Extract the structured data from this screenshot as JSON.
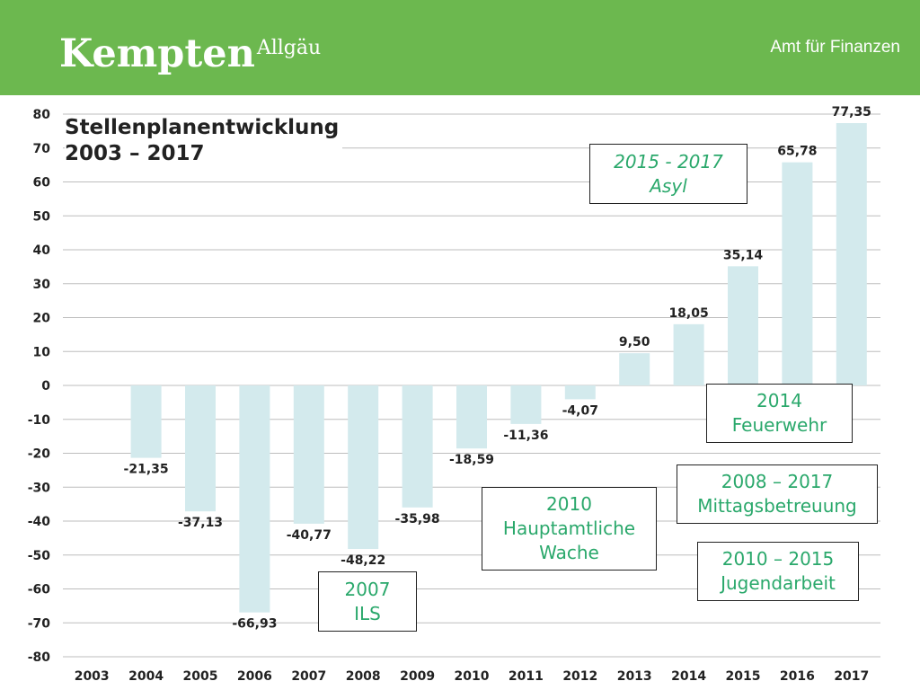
{
  "header": {
    "logo_main": "Kempten",
    "logo_sup": "Allgäu",
    "department": "Amt für Finanzen",
    "accent_color": "#6cb84f"
  },
  "chart_data": {
    "type": "bar",
    "title_line1": "Stellenplanentwicklung",
    "title_line2": "2003 – 2017",
    "categories": [
      "2003",
      "2004",
      "2005",
      "2006",
      "2007",
      "2008",
      "2009",
      "2010",
      "2011",
      "2012",
      "2013",
      "2014",
      "2015",
      "2016",
      "2017"
    ],
    "values": [
      null,
      -21.35,
      -37.13,
      -66.93,
      -40.77,
      -48.22,
      -35.98,
      -18.59,
      -11.36,
      -4.07,
      9.5,
      18.05,
      35.14,
      65.78,
      77.35
    ],
    "value_labels": [
      "",
      "-21,35",
      "-37,13",
      "-66,93",
      "-40,77",
      "-48,22",
      "-35,98",
      "-18,59",
      "-11,36",
      "-4,07",
      "9,50",
      "18,05",
      "35,14",
      "65,78",
      "77,35"
    ],
    "ylim": [
      -80,
      80
    ],
    "yticks": [
      "80",
      "70",
      "60",
      "50",
      "40",
      "30",
      "20",
      "10",
      "0",
      "-10",
      "-20",
      "-30",
      "-40",
      "-50",
      "-60",
      "-70",
      "-80"
    ],
    "grid": true,
    "bar_color": "#d3eaed",
    "annotations": [
      {
        "line1": "2015 - 2017",
        "line2": "Asyl",
        "line3": ""
      },
      {
        "line1": "2014",
        "line2": "Feuerwehr",
        "line3": ""
      },
      {
        "line1": "2008 – 2017",
        "line2": "Mittagsbetreuung",
        "line3": ""
      },
      {
        "line1": "2010",
        "line2": "Hauptamtliche",
        "line3": "Wache"
      },
      {
        "line1": "2010 – 2015",
        "line2": "Jugendarbeit",
        "line3": ""
      },
      {
        "line1": "2007",
        "line2": "ILS",
        "line3": ""
      }
    ]
  }
}
